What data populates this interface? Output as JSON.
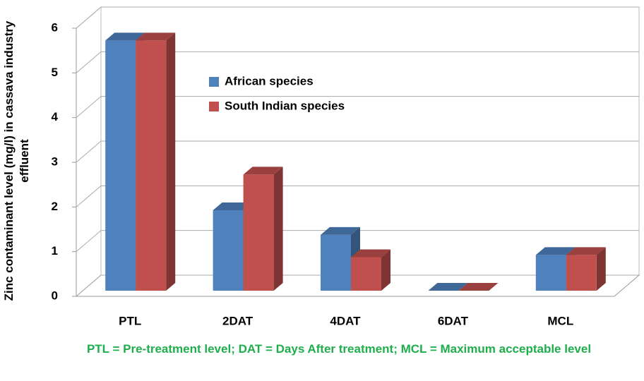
{
  "chart_data": {
    "type": "bar",
    "ylabel": "Zinc contaminant level (mg/l) in cassava industry effluent",
    "xlabel": "PTL = Pre-treatment level; DAT = Days  After treatment; MCL = Maximum acceptable  level",
    "categories": [
      "PTL",
      "2DAT",
      "4DAT",
      "6DAT",
      "MCL"
    ],
    "series": [
      {
        "name": "African species",
        "color": "#4f81bd",
        "values": [
          5.6,
          1.8,
          1.25,
          0,
          0.8
        ]
      },
      {
        "name": "South Indian species",
        "color": "#c0504d",
        "values": [
          5.6,
          2.6,
          0.75,
          0,
          0.8
        ]
      }
    ],
    "ylim": [
      0,
      6
    ],
    "yticks": [
      0,
      1,
      2,
      3,
      4,
      5,
      6
    ],
    "grid": true
  }
}
